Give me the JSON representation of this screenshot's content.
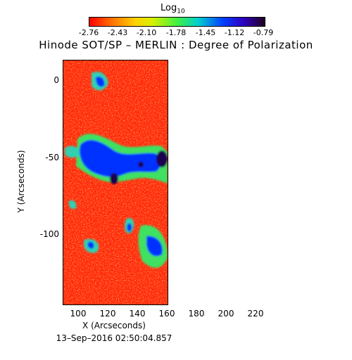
{
  "colorbar": {
    "title": "Log",
    "title_sub": "10",
    "ticks": [
      "-2.76",
      "-2.43",
      "-2.10",
      "-1.78",
      "-1.45",
      "-1.12",
      "-0.79"
    ]
  },
  "title": "Hinode SOT/SP – MERLIN : Degree of Polarization",
  "axes": {
    "xlabel": "X (Arcseconds)",
    "ylabel": "Y (Arcseconds)",
    "x_ticks": [
      "100",
      "120",
      "140",
      "160",
      "180",
      "200",
      "220"
    ],
    "y_ticks": [
      "0",
      "-50",
      "-100"
    ]
  },
  "timestamp": "13–Sep–2016 02:50:04.857",
  "colors": {
    "background_map": "#ff3a1a",
    "low": "#ff0000",
    "mid": "#40f040",
    "high": "#0020ff",
    "max": "#200040"
  }
}
